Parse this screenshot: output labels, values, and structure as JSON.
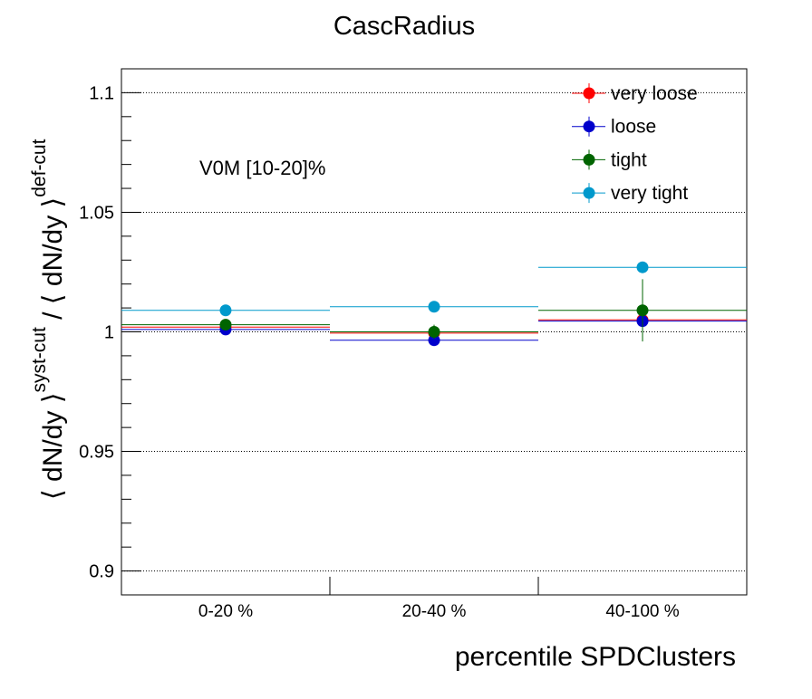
{
  "chart_data": {
    "type": "scatter",
    "title": "CascRadius",
    "xlabel": "percentile SPDClusters",
    "ylabel_main": "⟨ dN/dy ⟩",
    "ylabel_sup1": "syst-cut",
    "ylabel_sep": " / ⟨ dN/dy ⟩",
    "ylabel_sup2": "def-cut",
    "annotation": "V0M [10-20]%",
    "categories": [
      "0-20 %",
      "20-40 %",
      "40-100 %"
    ],
    "ylim": [
      0.89,
      1.11
    ],
    "y_ticks": [
      0.9,
      0.95,
      1,
      1.05,
      1.1
    ],
    "y_tick_labels": [
      "0.9",
      "0.95",
      "1",
      "1.05",
      "1.1"
    ],
    "grid_y": true,
    "legend_position": "top-right",
    "series": [
      {
        "name": "very loose",
        "color": "#ff0000",
        "values": [
          1.002,
          0.9995,
          1.005
        ],
        "errors": [
          0.001,
          0.002,
          0.003
        ]
      },
      {
        "name": "loose",
        "color": "#0000cc",
        "values": [
          1.001,
          0.9965,
          1.0045
        ],
        "errors": [
          0.001,
          0.002,
          0.003
        ]
      },
      {
        "name": "tight",
        "color": "#006400",
        "values": [
          1.003,
          1.0,
          1.009
        ],
        "errors": [
          0.001,
          0.003,
          0.013
        ]
      },
      {
        "name": "very tight",
        "color": "#0099cc",
        "values": [
          1.009,
          1.0105,
          1.027
        ],
        "errors": [
          0.001,
          0.002,
          0.002
        ]
      }
    ]
  }
}
